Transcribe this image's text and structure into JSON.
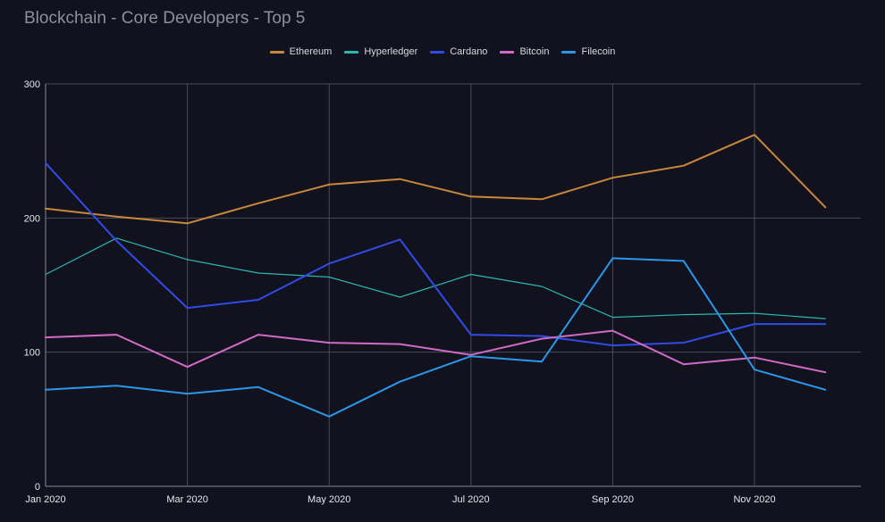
{
  "chart_data": {
    "type": "line",
    "title": "Blockchain - Core Developers - Top 5",
    "xlabel": "",
    "ylabel": "",
    "x": [
      "Jan 2020",
      "Feb 2020",
      "Mar 2020",
      "Apr 2020",
      "May 2020",
      "Jun 2020",
      "Jul 2020",
      "Aug 2020",
      "Sep 2020",
      "Oct 2020",
      "Nov 2020",
      "Dec 2020"
    ],
    "x_tick_labels": [
      "Jan 2020",
      "Mar 2020",
      "May 2020",
      "Jul 2020",
      "Sep 2020",
      "Nov 2020"
    ],
    "ylim": [
      0,
      300
    ],
    "y_ticks": [
      0,
      100,
      200,
      300
    ],
    "grid": true,
    "legend_position": "top",
    "series": [
      {
        "name": "Ethereum",
        "color": "#c8873b",
        "values": [
          207,
          201,
          196,
          211,
          225,
          229,
          216,
          214,
          230,
          239,
          262,
          208
        ]
      },
      {
        "name": "Hyperledger",
        "color": "#2ab7b0",
        "values": [
          158,
          185,
          169,
          159,
          156,
          141,
          158,
          149,
          126,
          128,
          129,
          125
        ]
      },
      {
        "name": "Cardano",
        "color": "#2f4be8",
        "values": [
          241,
          183,
          133,
          139,
          166,
          184,
          113,
          112,
          105,
          107,
          121,
          121
        ]
      },
      {
        "name": "Bitcoin",
        "color": "#d06ac6",
        "values": [
          111,
          113,
          89,
          113,
          107,
          106,
          98,
          110,
          116,
          91,
          96,
          85
        ]
      },
      {
        "name": "Filecoin",
        "color": "#2a97e8",
        "values": [
          72,
          75,
          69,
          74,
          52,
          78,
          97,
          93,
          170,
          168,
          87,
          72
        ]
      }
    ]
  }
}
